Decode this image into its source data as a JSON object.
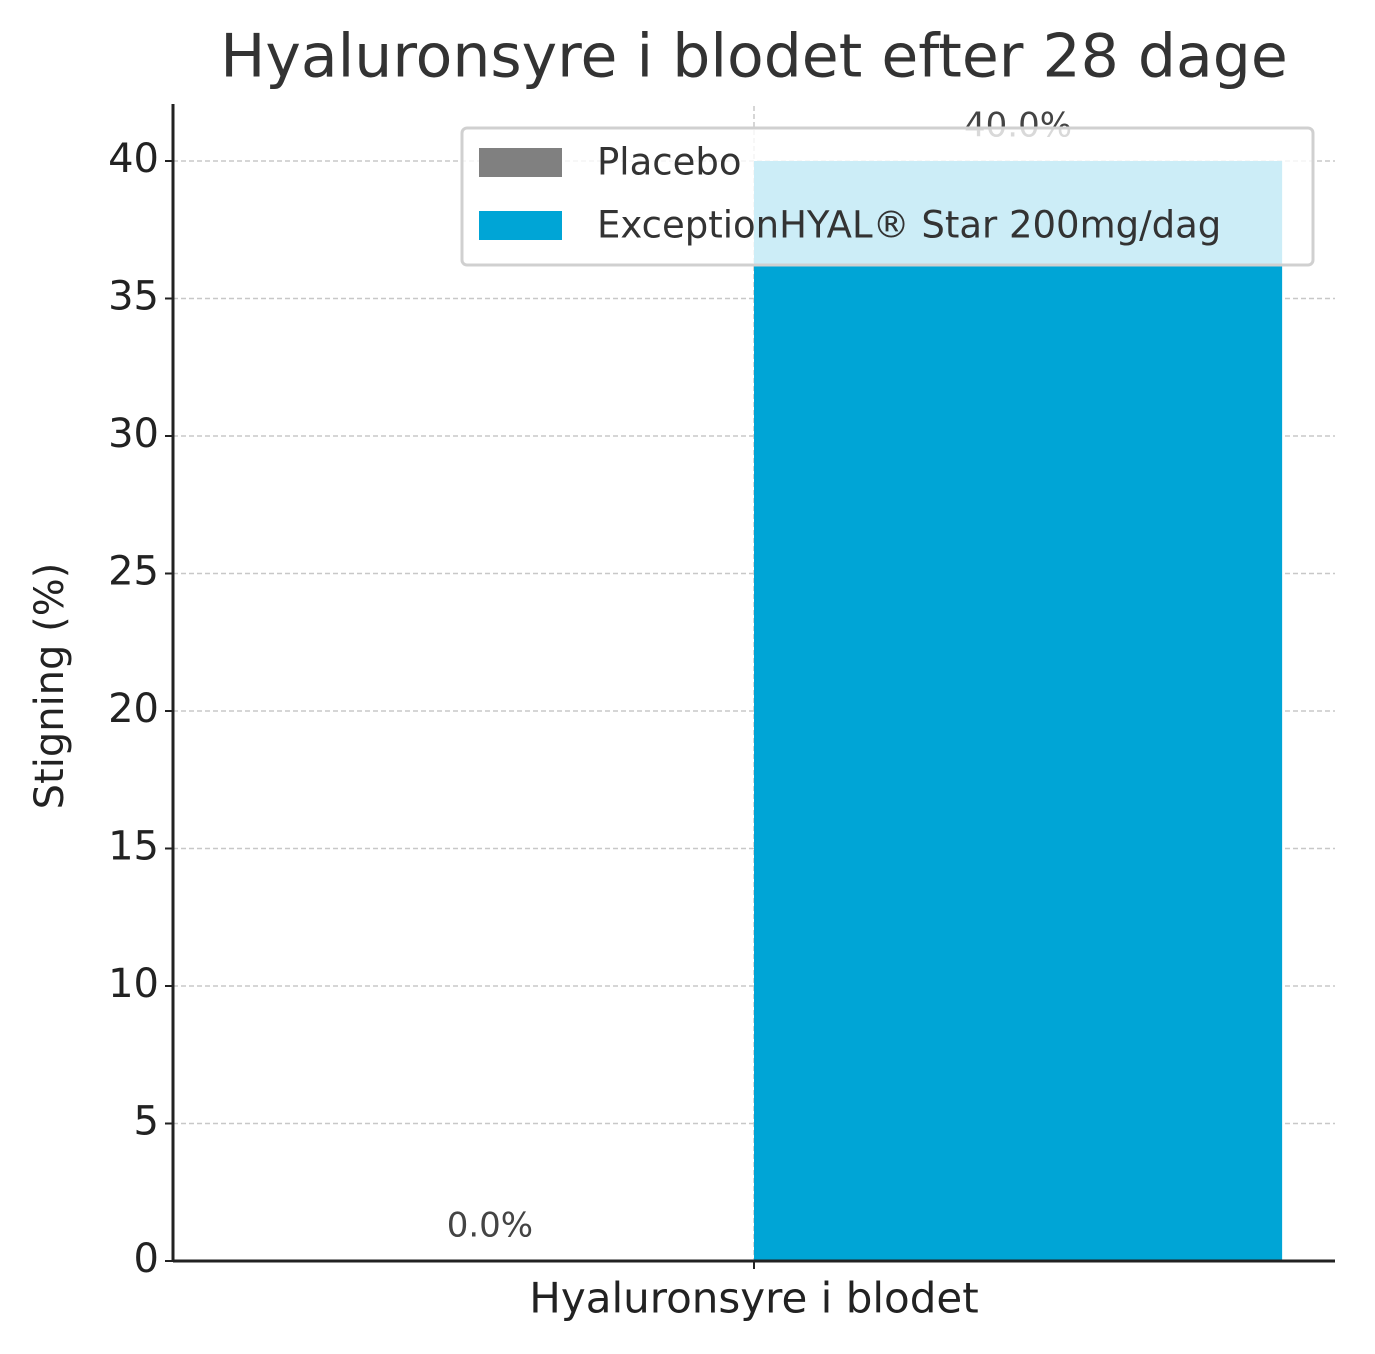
{
  "chart_data": {
    "type": "bar",
    "title": "Hyaluronsyre i blodet efter 28 dage",
    "ylabel": "Stigning (%)",
    "categories": [
      "Hyaluronsyre i blodet"
    ],
    "series": [
      {
        "name": "Placebo",
        "color": "#808080",
        "values": [
          0
        ],
        "value_labels": [
          "0.0%"
        ]
      },
      {
        "name": "ExceptionHYAL® Star 200mg/dag",
        "color": "#00a5d6",
        "values": [
          40
        ],
        "value_labels": [
          "40.0%"
        ]
      }
    ],
    "ylim": [
      0,
      42
    ],
    "yticks": [
      0,
      5,
      10,
      15,
      20,
      25,
      30,
      35,
      40
    ],
    "grid": true,
    "legend": "upper right"
  }
}
